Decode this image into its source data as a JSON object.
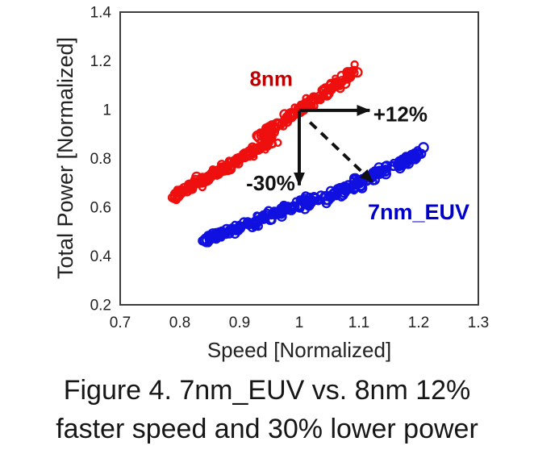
{
  "figure": {
    "caption_line1": "Figure 4. 7nm_EUV vs. 8nm 12%",
    "caption_line2": "faster speed and 30% lower power"
  },
  "chart_data": {
    "type": "scatter",
    "xlabel": "Speed [Normalized]",
    "ylabel": "Total Power [Normalized]",
    "xlim": [
      0.7,
      1.3
    ],
    "ylim": [
      0.2,
      1.4
    ],
    "x_ticks": [
      "0.7",
      "0.8",
      "0.9",
      "1",
      "1.1",
      "1.2",
      "1.3"
    ],
    "y_ticks": [
      "0.2",
      "0.4",
      "0.6",
      "0.8",
      "1",
      "1.2",
      "1.4"
    ],
    "grid": false,
    "marker": {
      "shape": "open-circle",
      "stroke_width": 2.4,
      "radius_range": [
        3.2,
        5.6
      ]
    },
    "series": [
      {
        "name": "8nm",
        "color": "#ee0f0f",
        "label_color": "#c00000",
        "clusters": [
          {
            "from": [
              0.795,
              0.65
            ],
            "to": [
              0.953,
              0.868
            ],
            "count": 150
          },
          {
            "from": [
              0.935,
              0.89
            ],
            "to": [
              1.095,
              1.16
            ],
            "count": 155
          }
        ]
      },
      {
        "name": "7nm_EUV",
        "color": "#1010e0",
        "label_color": "#0000cc",
        "clusters": [
          {
            "from": [
              0.845,
              0.465
            ],
            "to": [
              1.03,
              0.64
            ],
            "count": 150
          },
          {
            "from": [
              1.045,
              0.638
            ],
            "to": [
              1.2,
              0.82
            ],
            "count": 150
          }
        ]
      }
    ],
    "annotations": {
      "labels": [
        {
          "text": "8nm",
          "x": 0.953,
          "y": 1.129,
          "color": "#c00000",
          "anchor": "middle",
          "size": 26
        },
        {
          "text": "+12%",
          "x": 1.124,
          "y": 0.983,
          "color": "#111111",
          "anchor": "start",
          "size": 26
        },
        {
          "text": "-30%",
          "x": 0.993,
          "y": 0.701,
          "color": "#111111",
          "anchor": "end",
          "size": 26
        },
        {
          "text": "7nm_EUV",
          "x": 1.2,
          "y": 0.583,
          "color": "#0000cc",
          "anchor": "middle",
          "size": 27
        }
      ],
      "arrows": [
        {
          "from": [
            1.0,
            0.997
          ],
          "to": [
            1.118,
            0.997
          ],
          "style": "solid"
        },
        {
          "from": [
            1.0,
            0.997
          ],
          "to": [
            1.0,
            0.69
          ],
          "style": "solid"
        },
        {
          "from": [
            1.018,
            0.948
          ],
          "to": [
            1.123,
            0.703
          ],
          "style": "dashed"
        }
      ]
    }
  }
}
